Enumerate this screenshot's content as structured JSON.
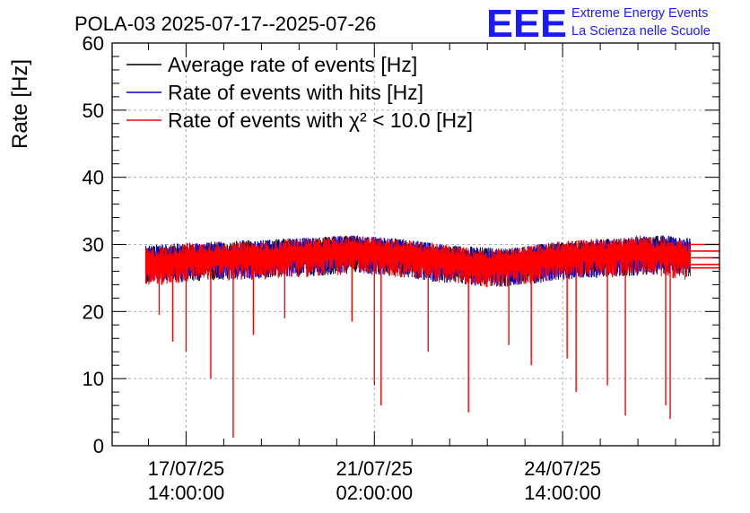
{
  "title": "POLA-03 2025-07-17--2025-07-26",
  "logo": {
    "mark": "EEE",
    "line1": "Extreme Energy Events",
    "line2": "La Scienza nelle Scuole",
    "color": "#1a1aff"
  },
  "chart_data": {
    "type": "line",
    "title": "POLA-03 2025-07-17--2025-07-26",
    "ylabel": "Rate [Hz]",
    "xlabel": "",
    "ylim": [
      0,
      60
    ],
    "yticks": [
      0,
      10,
      20,
      30,
      40,
      50,
      60
    ],
    "xlim": [
      "2025-07-16 05:00",
      "2025-07-27 12:00"
    ],
    "xticks": [
      {
        "date": "17/07/25",
        "time": "14:00:00",
        "t": "2025-07-17 14:00"
      },
      {
        "date": "21/07/25",
        "time": "02:00:00",
        "t": "2025-07-21 02:00"
      },
      {
        "date": "24/07/25",
        "time": "14:00:00",
        "t": "2025-07-24 14:00"
      }
    ],
    "grid": true,
    "legend_position": "top-left",
    "series": [
      {
        "name": "Average rate of events [Hz]",
        "color": "#000000",
        "x": [
          "2025-07-16 20:00",
          "2025-07-18 00:00",
          "2025-07-19 12:00",
          "2025-07-20 18:00",
          "2025-07-21 12:00",
          "2025-07-22 12:00",
          "2025-07-23 12:00",
          "2025-07-24 12:00",
          "2025-07-25 12:00",
          "2025-07-26 12:00",
          "2025-07-26 23:00"
        ],
        "values": [
          27.5,
          28.0,
          28.5,
          29.0,
          28.5,
          27.5,
          27.0,
          28.0,
          28.5,
          29.0,
          28.5
        ]
      },
      {
        "name": "Rate of events with hits [Hz]",
        "color": "#0000cc",
        "x": [
          "2025-07-16 20:00",
          "2025-07-18 00:00",
          "2025-07-19 12:00",
          "2025-07-20 18:00",
          "2025-07-21 12:00",
          "2025-07-22 12:00",
          "2025-07-23 12:00",
          "2025-07-24 12:00",
          "2025-07-25 12:00",
          "2025-07-26 12:00",
          "2025-07-26 23:00"
        ],
        "values": [
          27.5,
          28.0,
          28.5,
          29.0,
          28.5,
          27.5,
          27.0,
          28.0,
          28.5,
          29.0,
          28.5
        ]
      },
      {
        "name": "Rate of events with χ² < 10.0 [Hz]",
        "color": "#ff0000",
        "x": [
          "2025-07-16 20:00",
          "2025-07-17 08:00",
          "2025-07-18 00:00",
          "2025-07-19 00:00",
          "2025-07-19 12:00",
          "2025-07-20 00:00",
          "2025-07-20 18:00",
          "2025-07-21 12:00",
          "2025-07-22 00:00",
          "2025-07-22 12:00",
          "2025-07-23 00:00",
          "2025-07-23 12:00",
          "2025-07-24 00:00",
          "2025-07-24 12:00",
          "2025-07-25 00:00",
          "2025-07-25 12:00",
          "2025-07-26 00:00",
          "2025-07-26 12:00",
          "2025-07-26 23:00"
        ],
        "values": [
          27.0,
          27.5,
          28.0,
          28.0,
          28.5,
          28.5,
          29.0,
          28.5,
          28.0,
          27.5,
          27.0,
          27.0,
          27.5,
          28.0,
          28.5,
          28.5,
          29.0,
          28.5,
          28.0
        ]
      }
    ],
    "dips": [
      {
        "t": "2025-07-17 02:00",
        "v": 19.5
      },
      {
        "t": "2025-07-17 08:00",
        "v": 15.5
      },
      {
        "t": "2025-07-17 14:00",
        "v": 14.0
      },
      {
        "t": "2025-07-18 01:00",
        "v": 10.0
      },
      {
        "t": "2025-07-18 11:00",
        "v": 1.2
      },
      {
        "t": "2025-07-18 20:00",
        "v": 16.5
      },
      {
        "t": "2025-07-19 10:00",
        "v": 19.0
      },
      {
        "t": "2025-07-20 16:00",
        "v": 18.5
      },
      {
        "t": "2025-07-21 02:00",
        "v": 9.0
      },
      {
        "t": "2025-07-21 05:00",
        "v": 6.0
      },
      {
        "t": "2025-07-22 02:00",
        "v": 14.0
      },
      {
        "t": "2025-07-22 20:00",
        "v": 5.0
      },
      {
        "t": "2025-07-23 14:00",
        "v": 15.0
      },
      {
        "t": "2025-07-24 00:00",
        "v": 12.0
      },
      {
        "t": "2025-07-24 16:00",
        "v": 13.0
      },
      {
        "t": "2025-07-24 20:00",
        "v": 8.0
      },
      {
        "t": "2025-07-25 10:00",
        "v": 9.0
      },
      {
        "t": "2025-07-25 18:00",
        "v": 4.5
      },
      {
        "t": "2025-07-26 12:00",
        "v": 6.0
      },
      {
        "t": "2025-07-26 14:00",
        "v": 4.0
      }
    ],
    "tail_levels": [
      30.0,
      29.0,
      28.0,
      27.0,
      26.5
    ]
  }
}
